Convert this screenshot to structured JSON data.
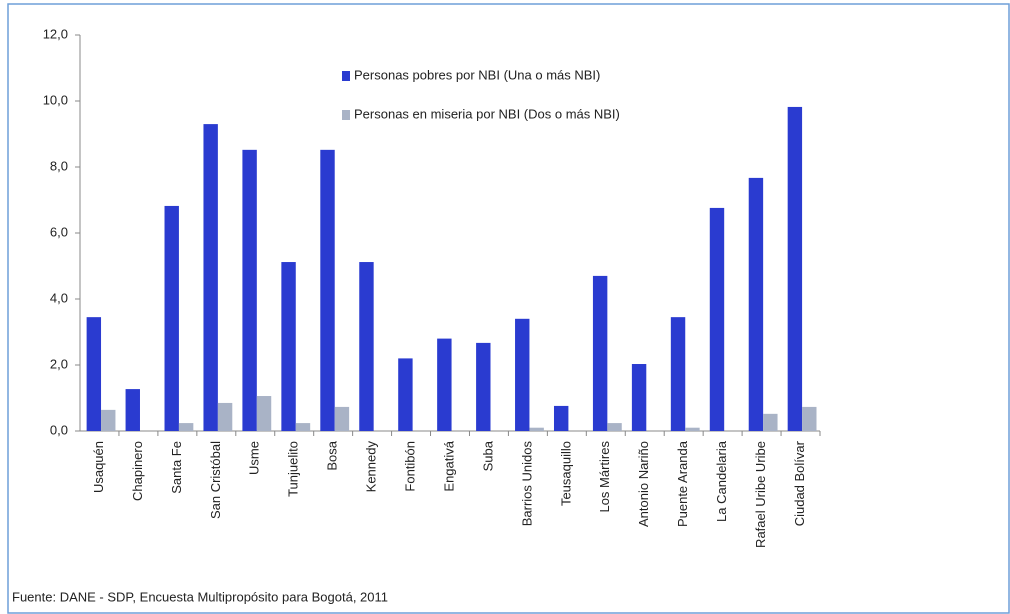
{
  "chart_data": {
    "type": "bar",
    "categories": [
      "Usaquén",
      "Chapinero",
      "Santa Fe",
      "San Cristóbal",
      "Usme",
      "Tunjuelito",
      "Bosa",
      "Kennedy",
      "Fontibón",
      "Engativá",
      "Suba",
      "Barrios Unidos",
      "Teusaquillo",
      "Los Mártires",
      "Antonio Nariño",
      "Puente Aranda",
      "La Candelaria",
      "Rafael Uribe Uribe",
      "Ciudad Bolívar"
    ],
    "series": [
      {
        "name": "Personas pobres por NBI (Una o más NBI)",
        "color": "#2a3bd0",
        "values": [
          3.45,
          1.27,
          6.82,
          9.3,
          8.52,
          5.12,
          8.52,
          5.12,
          2.2,
          2.8,
          2.67,
          3.4,
          0.76,
          4.7,
          2.03,
          3.45,
          6.76,
          7.67,
          9.82
        ]
      },
      {
        "name": "Personas en miseria por NBI (Dos o más NBI)",
        "color": "#a9b3c6",
        "values": [
          0.64,
          0,
          0.24,
          0.85,
          1.06,
          0.24,
          0.73,
          0,
          0,
          0,
          0,
          0.1,
          0,
          0.24,
          0,
          0.1,
          0,
          0.52,
          0.73
        ]
      }
    ],
    "ylim": [
      0,
      12
    ],
    "yticks": [
      {
        "value": 0,
        "label": "0,0"
      },
      {
        "value": 2,
        "label": "2,0"
      },
      {
        "value": 4,
        "label": "4,0"
      },
      {
        "value": 6,
        "label": "6,0"
      },
      {
        "value": 8,
        "label": "8,0"
      },
      {
        "value": 10,
        "label": "10,0"
      },
      {
        "value": 12,
        "label": "12,0"
      }
    ],
    "legend": "top",
    "source": "Fuente: DANE - SDP, Encuesta Multipropósito para Bogotá, 2011"
  }
}
